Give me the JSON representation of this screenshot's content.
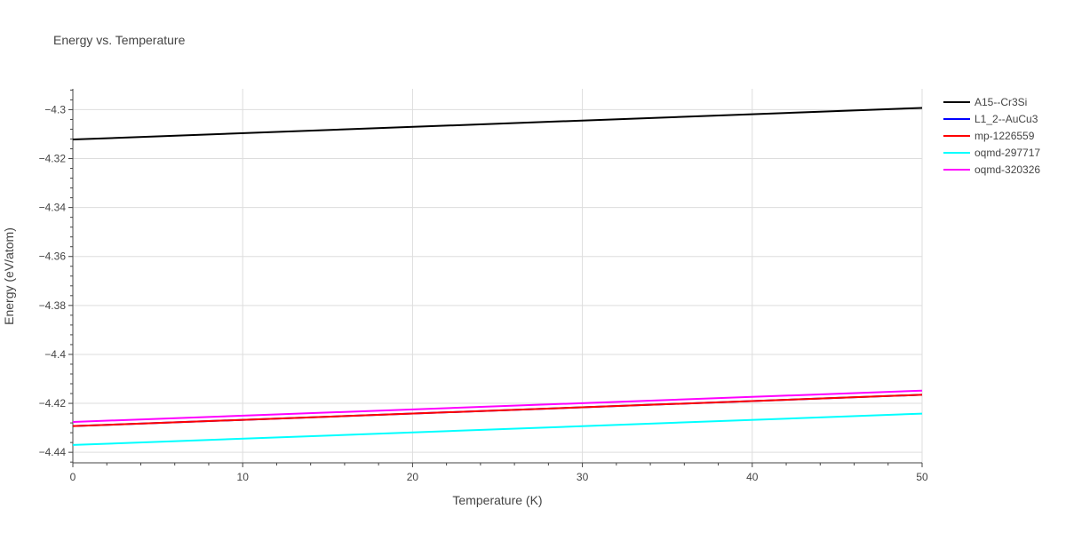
{
  "chart_data": {
    "type": "line",
    "title": "Energy vs. Temperature",
    "xlabel": "Temperature (K)",
    "ylabel": "Energy (eV/atom)",
    "xlim": [
      0,
      50
    ],
    "ylim": [
      -4.4443,
      -4.2915
    ],
    "xticks": [
      0,
      10,
      20,
      30,
      40,
      50
    ],
    "yticks": [
      -4.44,
      -4.42,
      -4.4,
      -4.38,
      -4.36,
      -4.34,
      -4.32,
      -4.3
    ],
    "ytick_labels": [
      "−4.44",
      "−4.42",
      "−4.4",
      "−4.38",
      "−4.36",
      "−4.34",
      "−4.32",
      "−4.3"
    ],
    "grid": true,
    "legend_position": "top-right",
    "x": [
      0,
      50
    ],
    "series": [
      {
        "name": "A15--Cr3Si",
        "color": "#000000",
        "values": [
          -4.3122,
          -4.2993
        ]
      },
      {
        "name": "L1_2--AuCu3",
        "color": "#0000ff",
        "values": [
          -4.4293,
          -4.4165
        ]
      },
      {
        "name": "mp-1226559",
        "color": "#ff0000",
        "values": [
          -4.4293,
          -4.4165
        ]
      },
      {
        "name": "oqmd-297717",
        "color": "#00ffff",
        "values": [
          -4.437,
          -4.4242
        ]
      },
      {
        "name": "oqmd-320326",
        "color": "#ff00ff",
        "values": [
          -4.4276,
          -4.4148
        ]
      }
    ]
  }
}
